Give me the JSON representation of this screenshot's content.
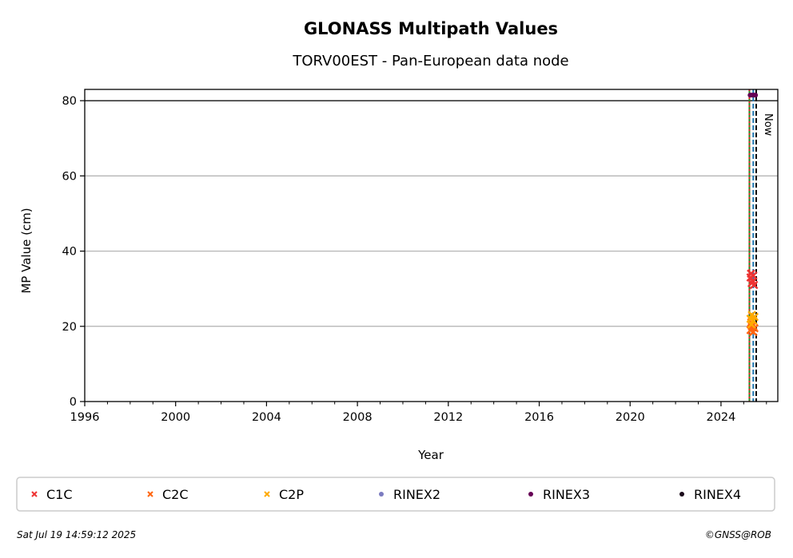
{
  "chart_data": {
    "type": "scatter",
    "title": "GLONASS Multipath Values",
    "subtitle": "TORV00EST - Pan-European data node",
    "xlabel": "Year",
    "ylabel": "MP Value (cm)",
    "xlim": [
      1996,
      2026.5
    ],
    "ylim": [
      0,
      83
    ],
    "x_ticks": [
      "1996",
      "2000",
      "2004",
      "2008",
      "2012",
      "2016",
      "2020",
      "2024"
    ],
    "y_ticks": [
      "0",
      "20",
      "40",
      "60",
      "80"
    ],
    "grid": "horizontal",
    "reference_line_y": 80,
    "now_label": "Now",
    "now_x": 2025.55,
    "vertical_markers": [
      {
        "x": 2025.25,
        "color": "#228b22",
        "style": "solid"
      },
      {
        "x": 2025.25,
        "color": "#dd2222",
        "style": "dotted"
      },
      {
        "x": 2025.42,
        "color": "#1f77b4",
        "style": "dashed"
      },
      {
        "x": 2025.55,
        "color": "#000000",
        "style": "dashed"
      }
    ],
    "series": [
      {
        "name": "C1C",
        "marker": "x",
        "color": "#ee3333",
        "points": [
          [
            2025.3,
            33
          ],
          [
            2025.35,
            31.5
          ],
          [
            2025.4,
            32
          ],
          [
            2025.45,
            31
          ],
          [
            2025.32,
            34
          ],
          [
            2025.42,
            33.5
          ]
        ]
      },
      {
        "name": "C2C",
        "marker": "x",
        "color": "#ff6611",
        "points": [
          [
            2025.3,
            19
          ],
          [
            2025.36,
            20
          ],
          [
            2025.42,
            18.5
          ],
          [
            2025.47,
            19.5
          ],
          [
            2025.33,
            21
          ]
        ]
      },
      {
        "name": "C2P",
        "marker": "x",
        "color": "#ffaa00",
        "points": [
          [
            2025.3,
            22
          ],
          [
            2025.36,
            23
          ],
          [
            2025.42,
            21.5
          ],
          [
            2025.47,
            22.5
          ],
          [
            2025.34,
            20.5
          ]
        ]
      },
      {
        "name": "RINEX2",
        "marker": "dot",
        "color": "#7b7bc0",
        "points": []
      },
      {
        "name": "RINEX3",
        "marker": "dot",
        "color": "#660055",
        "points": [
          [
            2025.28,
            81.5
          ],
          [
            2025.34,
            81.5
          ],
          [
            2025.4,
            81.5
          ],
          [
            2025.46,
            81.5
          ],
          [
            2025.52,
            81.5
          ]
        ]
      },
      {
        "name": "RINEX4",
        "marker": "dot",
        "color": "#1a0a1a",
        "points": []
      }
    ]
  },
  "footer": {
    "timestamp": "Sat Jul 19 14:59:12 2025",
    "copyright": "©GNSS@ROB"
  }
}
